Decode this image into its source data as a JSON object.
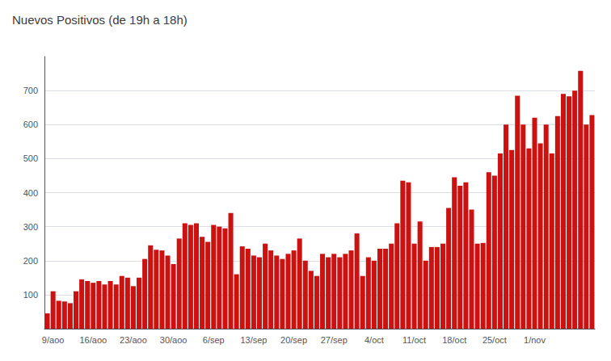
{
  "chart_data": {
    "type": "bar",
    "title": "Nuevos Positivos (de 19h a 18h)",
    "categories": [
      null,
      "9/aoo",
      null,
      null,
      null,
      null,
      null,
      null,
      "16/aoo",
      null,
      null,
      null,
      null,
      null,
      null,
      "23/aoo",
      null,
      null,
      null,
      null,
      null,
      null,
      "30/aoo",
      null,
      null,
      null,
      null,
      null,
      null,
      "6/sep",
      null,
      null,
      null,
      null,
      null,
      null,
      "13/sep",
      null,
      null,
      null,
      null,
      null,
      null,
      "20/sep",
      null,
      null,
      null,
      null,
      null,
      null,
      "27/sep",
      null,
      null,
      null,
      null,
      null,
      null,
      "4/oct",
      null,
      null,
      null,
      null,
      null,
      null,
      "11/oct",
      null,
      null,
      null,
      null,
      null,
      null,
      "18/oct",
      null,
      null,
      null,
      null,
      null,
      null,
      "25/oct",
      null,
      null,
      null,
      null,
      null,
      null,
      "1/nov",
      null,
      null,
      null,
      null,
      null,
      null,
      null,
      null,
      null,
      null
    ],
    "values": [
      45,
      110,
      82,
      80,
      75,
      110,
      145,
      140,
      135,
      140,
      130,
      140,
      130,
      155,
      150,
      125,
      150,
      205,
      245,
      232,
      230,
      215,
      190,
      265,
      310,
      305,
      310,
      270,
      255,
      305,
      300,
      295,
      340,
      160,
      242,
      235,
      215,
      210,
      250,
      230,
      215,
      205,
      220,
      230,
      265,
      200,
      170,
      155,
      220,
      210,
      220,
      210,
      220,
      230,
      280,
      155,
      210,
      200,
      235,
      235,
      250,
      310,
      435,
      430,
      250,
      315,
      200,
      240,
      240,
      250,
      355,
      445,
      420,
      430,
      350,
      250,
      252,
      460,
      450,
      515,
      600,
      525,
      685,
      600,
      530,
      620,
      545,
      600,
      515,
      625,
      690,
      683,
      700,
      758,
      600,
      628
    ],
    "color": "#cc1111",
    "ylim": [
      0,
      800
    ],
    "yticks": [
      100,
      200,
      300,
      400,
      500,
      600,
      700
    ],
    "grid": true
  }
}
